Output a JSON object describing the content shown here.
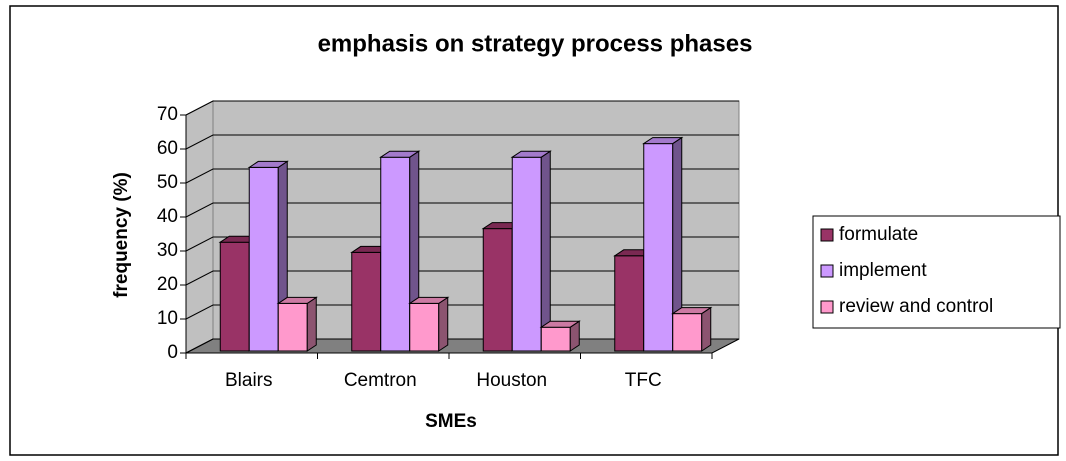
{
  "chart_data": {
    "type": "bar3d",
    "title": "emphasis on strategy process phases",
    "xlabel": "SMEs",
    "ylabel": "frequency (%)",
    "categories": [
      "Blairs",
      "Cemtron",
      "Houston",
      "TFC"
    ],
    "series": [
      {
        "name": "formulate",
        "color": "#993366",
        "values": [
          32,
          29,
          36,
          28
        ]
      },
      {
        "name": "implement",
        "color": "#cc99ff",
        "values": [
          54,
          57,
          57,
          61
        ]
      },
      {
        "name": "review and control",
        "color": "#ff99cc",
        "values": [
          14,
          14,
          7,
          11
        ]
      }
    ],
    "ylim": [
      0,
      70
    ],
    "yticks": [
      0,
      10,
      20,
      30,
      40,
      50,
      60,
      70
    ],
    "grid": true,
    "legend": "right"
  }
}
